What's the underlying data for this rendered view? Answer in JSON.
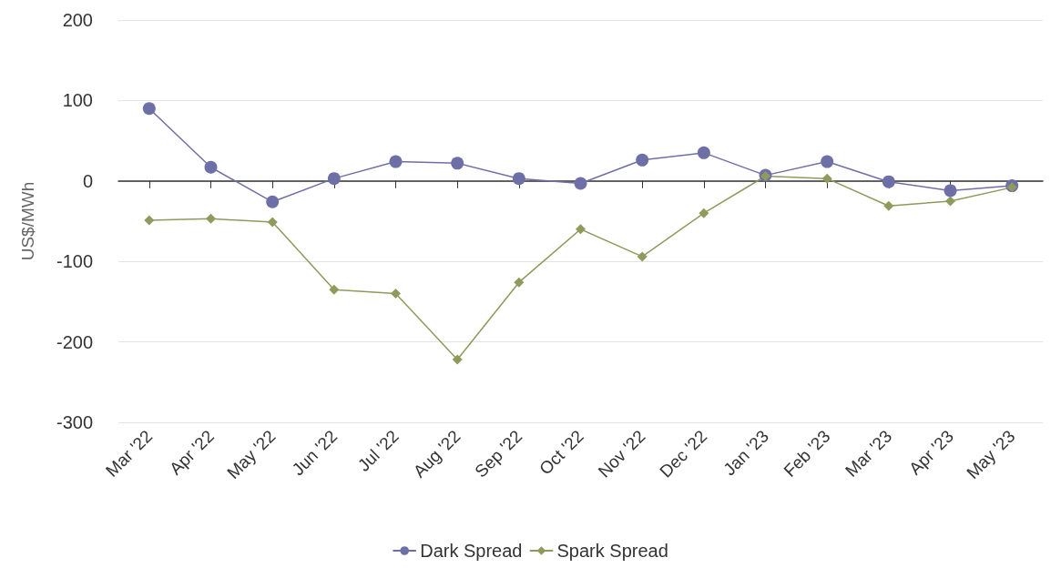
{
  "chart_data": {
    "type": "line",
    "ylabel": "US$/MWh",
    "categories": [
      "Mar '22",
      "Apr '22",
      "May '22",
      "Jun '22",
      "Jul '22",
      "Aug '22",
      "Sep '22",
      "Oct '22",
      "Nov '22",
      "Dec '22",
      "Jan '23",
      "Feb '23",
      "Mar '23",
      "Apr '23",
      "May '23"
    ],
    "series": [
      {
        "name": "Dark Spread",
        "color": "#6f6fa8",
        "marker": "circle",
        "values": [
          90,
          17,
          -26,
          3,
          24,
          22,
          3,
          -3,
          26,
          35,
          7,
          24,
          -1,
          -12,
          -6
        ]
      },
      {
        "name": "Spark Spread",
        "color": "#8f9a5c",
        "marker": "diamond",
        "values": [
          -49,
          -47,
          -51,
          -135,
          -140,
          -222,
          -126,
          -60,
          -94,
          -40,
          6,
          3,
          -31,
          -25,
          -8
        ]
      }
    ],
    "ylim": [
      -300,
      200
    ],
    "yticks": [
      -300,
      -200,
      -100,
      0,
      100,
      200
    ],
    "grid": "y",
    "legend": "bottom"
  }
}
